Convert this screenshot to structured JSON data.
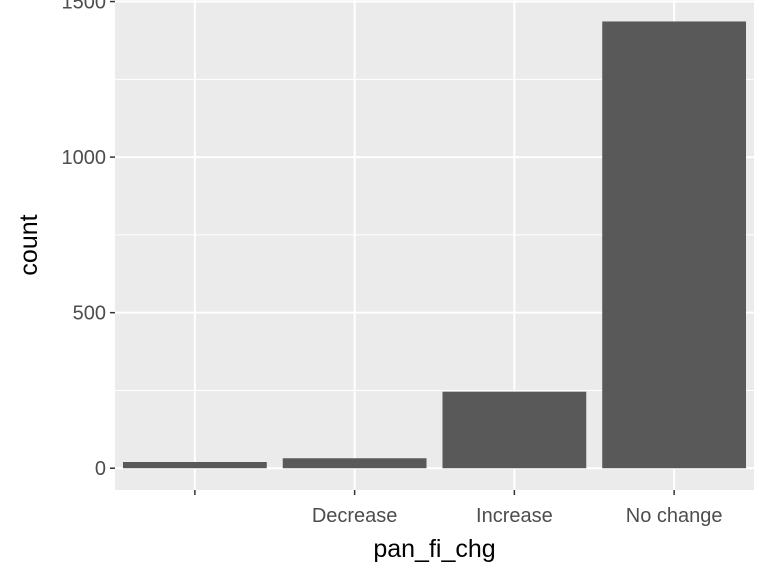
{
  "chart_data": {
    "type": "bar",
    "categories": [
      "",
      "Decrease",
      "Increase",
      "No change"
    ],
    "values": [
      20,
      32,
      246,
      1436
    ],
    "xlabel": "pan_fi_chg",
    "ylabel": "count",
    "ylim": [
      -70,
      1505
    ],
    "yticks": [
      0,
      500,
      1000,
      1500
    ],
    "minor_yticks": [
      250,
      750,
      1250
    ],
    "grid": true
  },
  "colors": {
    "panel": "#ebebeb",
    "grid": "#ffffff",
    "bar": "#595959",
    "tick": "#333333"
  }
}
